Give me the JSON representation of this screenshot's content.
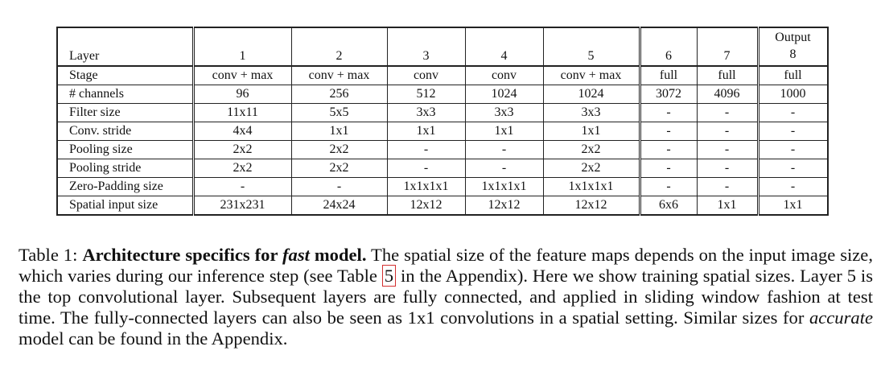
{
  "table": {
    "header": {
      "layer_label": "Layer",
      "columns": [
        "1",
        "2",
        "3",
        "4",
        "5",
        "6",
        "7"
      ],
      "output_label": "Output",
      "output_column": "8"
    },
    "rows": [
      {
        "label": "Stage",
        "cells": [
          "conv + max",
          "conv + max",
          "conv",
          "conv",
          "conv + max",
          "full",
          "full",
          "full"
        ]
      },
      {
        "label": "# channels",
        "cells": [
          "96",
          "256",
          "512",
          "1024",
          "1024",
          "3072",
          "4096",
          "1000"
        ]
      },
      {
        "label": "Filter size",
        "cells": [
          "11x11",
          "5x5",
          "3x3",
          "3x3",
          "3x3",
          "-",
          "-",
          "-"
        ]
      },
      {
        "label": "Conv. stride",
        "cells": [
          "4x4",
          "1x1",
          "1x1",
          "1x1",
          "1x1",
          "-",
          "-",
          "-"
        ]
      },
      {
        "label": "Pooling size",
        "cells": [
          "2x2",
          "2x2",
          "-",
          "-",
          "2x2",
          "-",
          "-",
          "-"
        ]
      },
      {
        "label": "Pooling stride",
        "cells": [
          "2x2",
          "2x2",
          "-",
          "-",
          "2x2",
          "-",
          "-",
          "-"
        ]
      },
      {
        "label": "Zero-Padding size",
        "cells": [
          "-",
          "-",
          "1x1x1x1",
          "1x1x1x1",
          "1x1x1x1",
          "-",
          "-",
          "-"
        ]
      },
      {
        "label": "Spatial input size",
        "cells": [
          "231x231",
          "24x24",
          "12x12",
          "12x12",
          "12x12",
          "6x6",
          "1x1",
          "1x1"
        ]
      }
    ]
  },
  "caption": {
    "prefix": "Table 1: ",
    "lead_part1": "Architecture specifics for ",
    "lead_emph": "fast",
    "lead_part2": " model.",
    "body_part1": " The spatial size of the feature maps depends on the input image size, which varies during our inference step (see Table ",
    "ref_number": "5",
    "body_part2": " in the Appendix). Here we show training spatial sizes. Layer 5 is the top convolutional layer. Subsequent layers are fully connected, and applied in sliding window fashion at test time. The fully-connected layers can also be seen as 1x1 convolutions in a spatial setting. Similar sizes for ",
    "body_emph": "accurate",
    "body_part3": " model can be found in the Appendix.",
    "ref_box_color": "#d32f2f"
  }
}
